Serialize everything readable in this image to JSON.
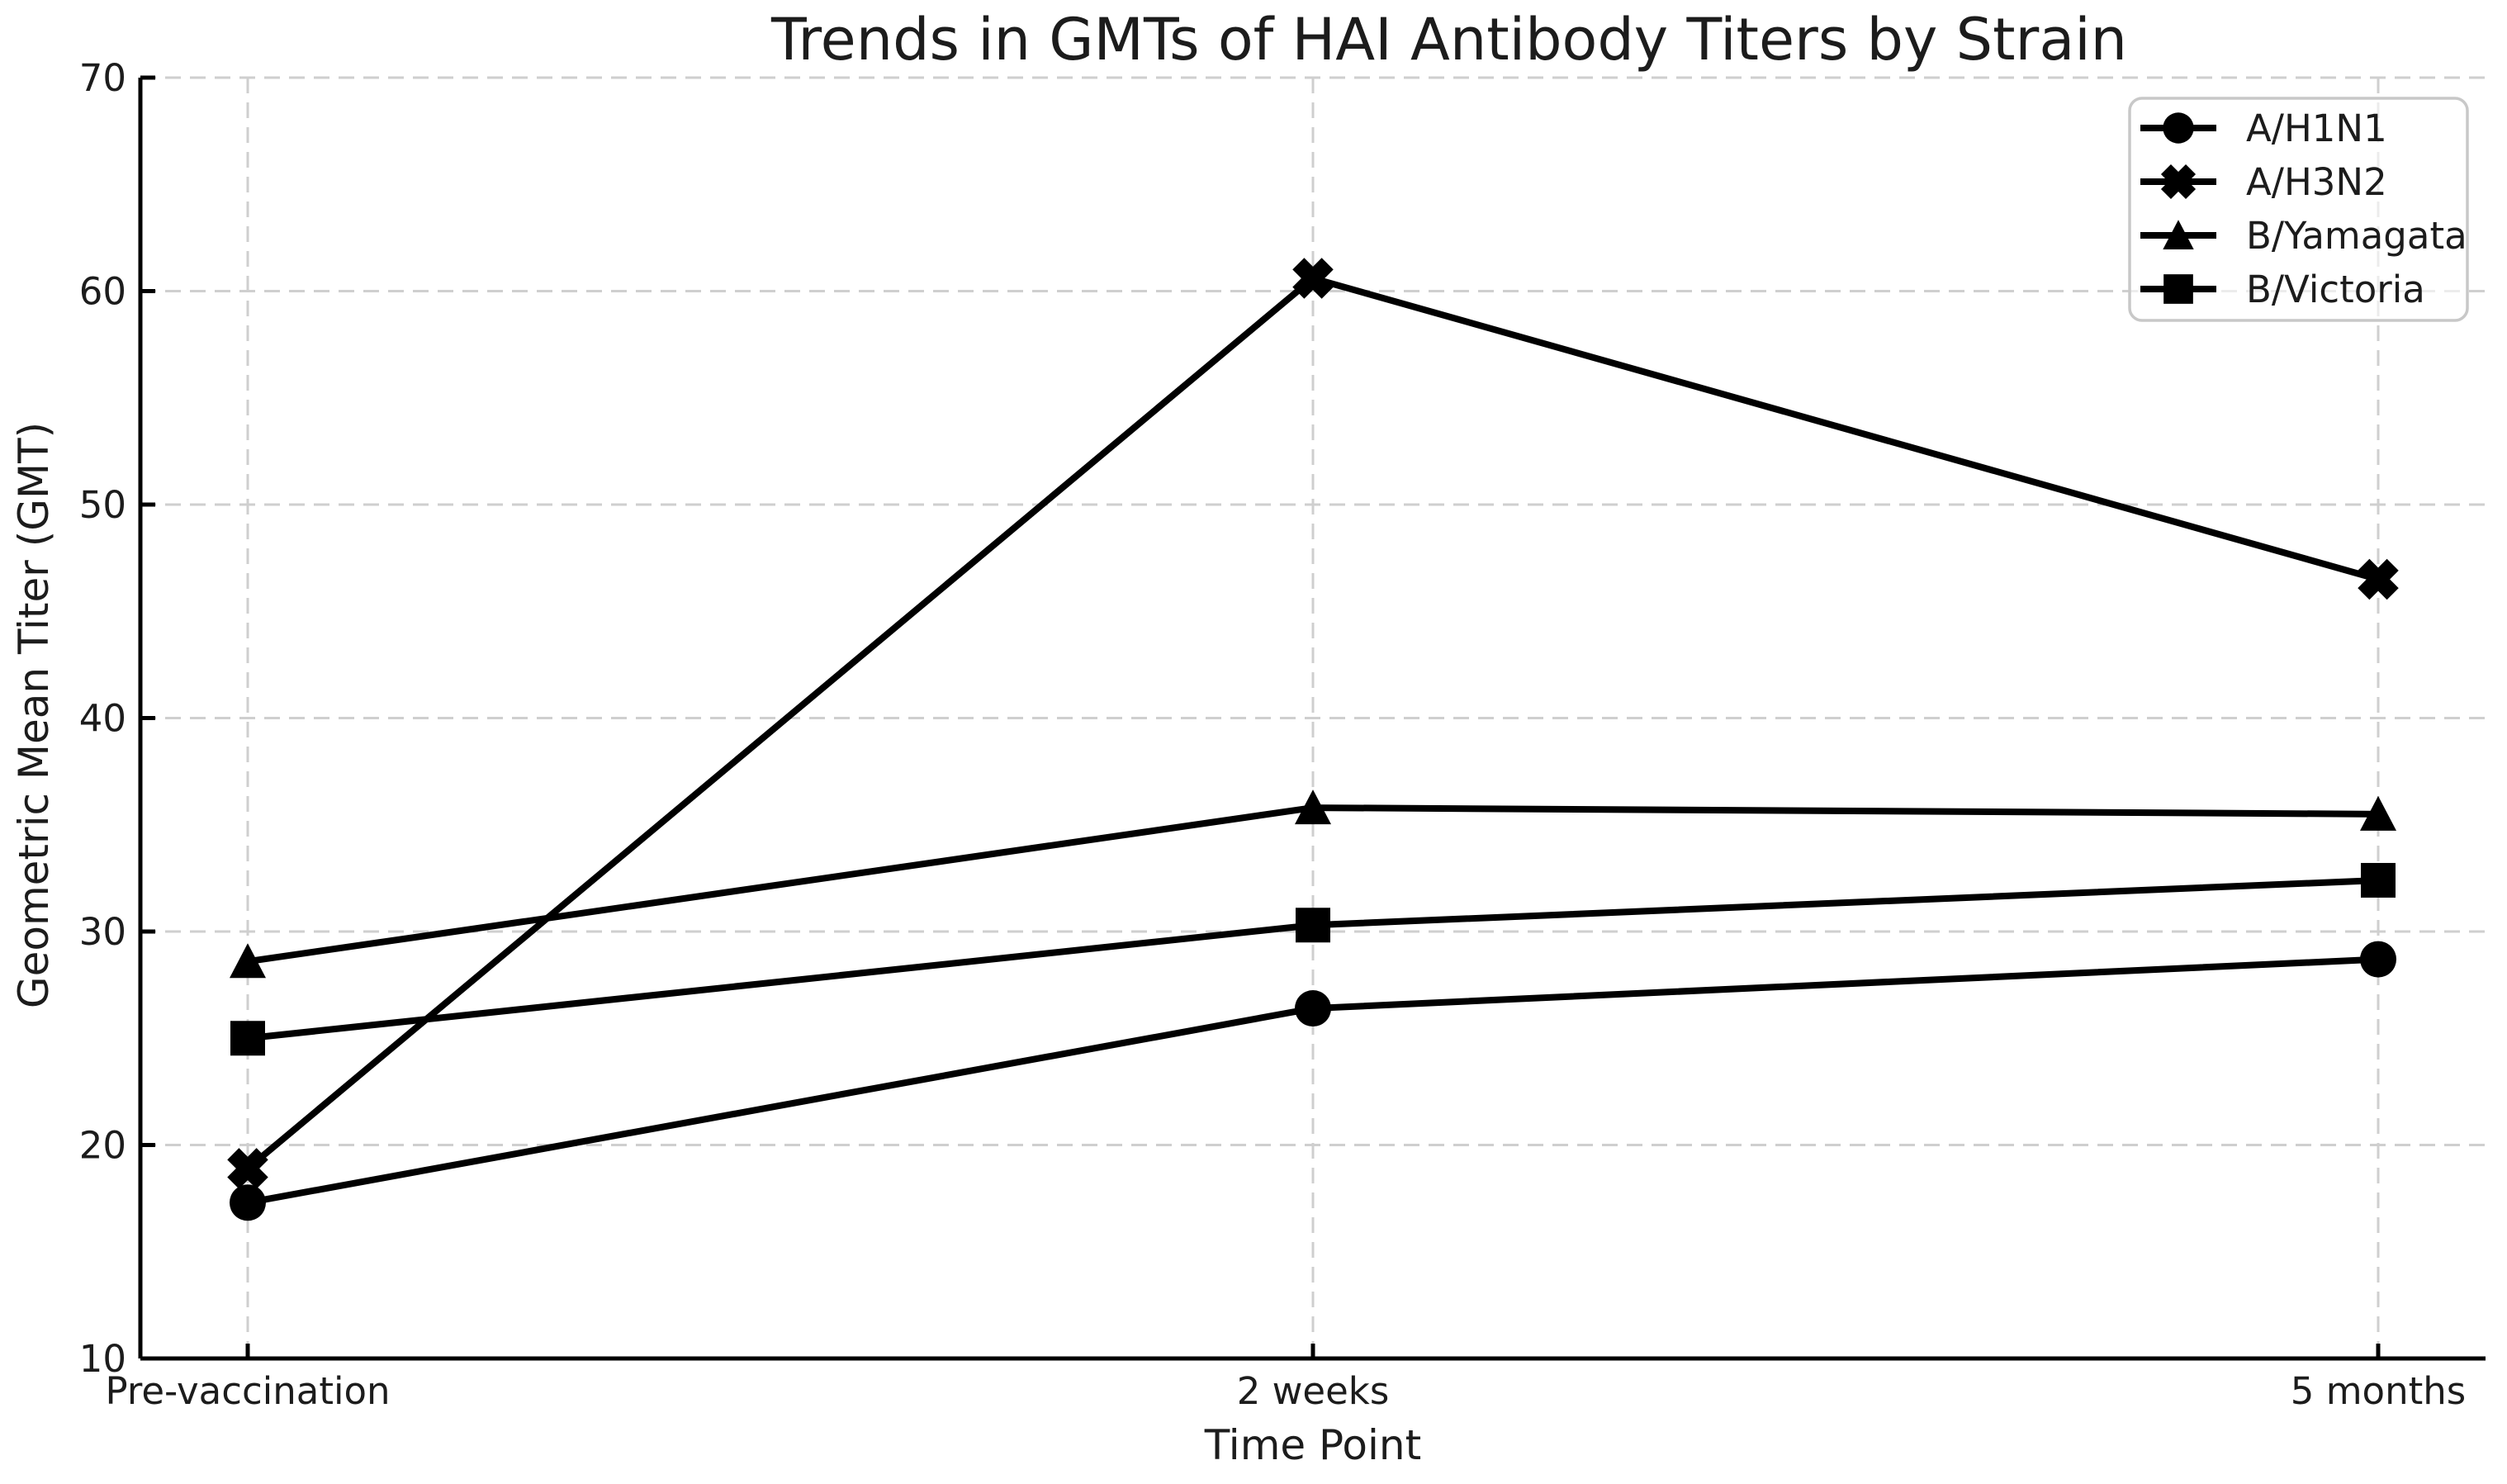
{
  "page": {
    "background": "#ffffff"
  },
  "chart_data": {
    "type": "line",
    "title": "Trends in GMTs of HAI Antibody Titers by Strain",
    "xlabel": "Time Point",
    "ylabel": "Geometric Mean Titer (GMT)",
    "categories": [
      "Pre-vaccination",
      "2 weeks",
      "5 months"
    ],
    "ylim": [
      10,
      70
    ],
    "yticks": [
      10,
      20,
      30,
      40,
      50,
      60,
      70
    ],
    "grid": {
      "visible": true,
      "style": "dashed",
      "color": "#cfcfcf"
    },
    "legend": {
      "position": "upper-right",
      "frame": true,
      "edge_color": "#c8c8c8"
    },
    "line_color": "#000000",
    "text_color": "#1c1c1c",
    "series": [
      {
        "name": "A/H1N1",
        "marker": "circle",
        "color": "#000000",
        "values": [
          17.3,
          26.4,
          28.7
        ]
      },
      {
        "name": "A/H3N2",
        "marker": "x",
        "color": "#000000",
        "values": [
          18.9,
          60.6,
          46.5
        ]
      },
      {
        "name": "B/Yamagata",
        "marker": "triangle",
        "color": "#000000",
        "values": [
          28.6,
          35.8,
          35.5
        ]
      },
      {
        "name": "B/Victoria",
        "marker": "square",
        "color": "#000000",
        "values": [
          25.0,
          30.3,
          32.4
        ]
      }
    ]
  }
}
